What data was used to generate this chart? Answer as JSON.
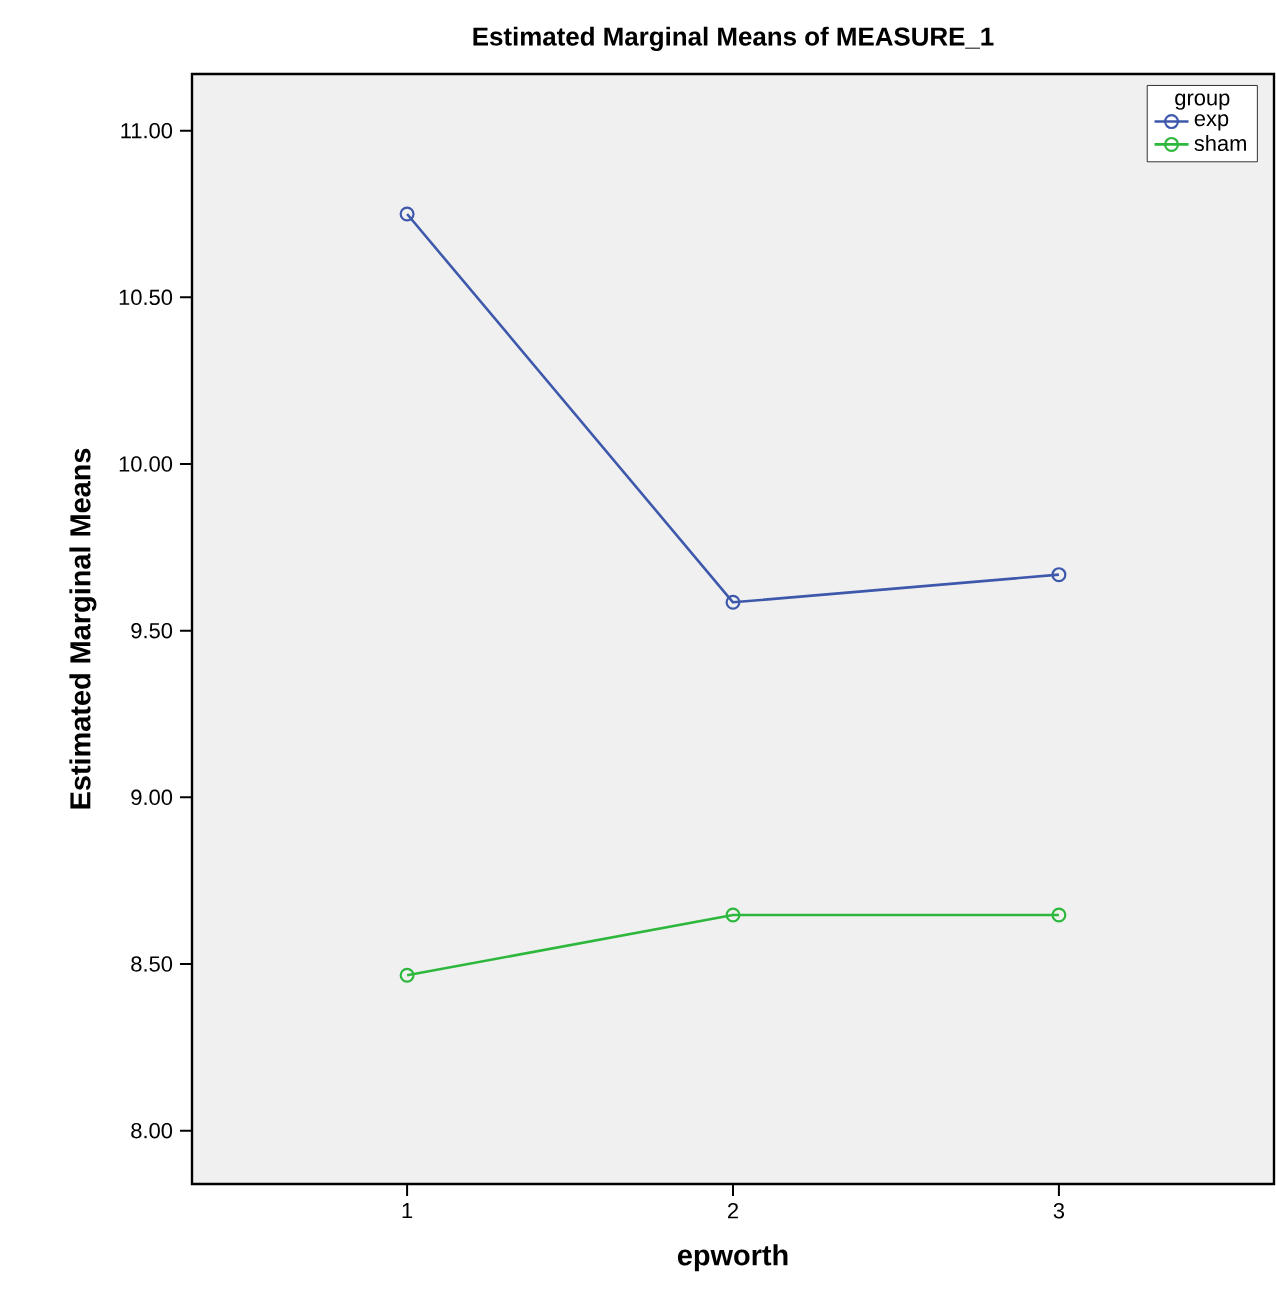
{
  "chart_data": {
    "type": "line",
    "title": "Estimated Marginal Means of MEASURE_1",
    "xlabel": "epworth",
    "ylabel": "Estimated Marginal Means",
    "legend_title": "group",
    "x": [
      1,
      2,
      3
    ],
    "series": [
      {
        "name": "exp",
        "color": "#3e58ac",
        "values": [
          10.75,
          9.585,
          9.668
        ]
      },
      {
        "name": "sham",
        "color": "#2db83d",
        "values": [
          8.466,
          8.647,
          8.647
        ]
      }
    ],
    "xlim": [
      0.34,
      3.66
    ],
    "xticks": [
      1,
      2,
      3
    ],
    "ylim": [
      7.84,
      11.17
    ],
    "yticks": [
      {
        "value": 8,
        "label": "8.00"
      },
      {
        "value": 8.5,
        "label": "8.50"
      },
      {
        "value": 9,
        "label": "9.00"
      },
      {
        "value": 9.5,
        "label": "9.50"
      },
      {
        "value": 10,
        "label": "10.00"
      },
      {
        "value": 10.5,
        "label": "10.50"
      },
      {
        "value": 11,
        "label": "11.00"
      }
    ],
    "legend": "top right",
    "marker": "circle",
    "line_style": "solid",
    "grid": false
  }
}
